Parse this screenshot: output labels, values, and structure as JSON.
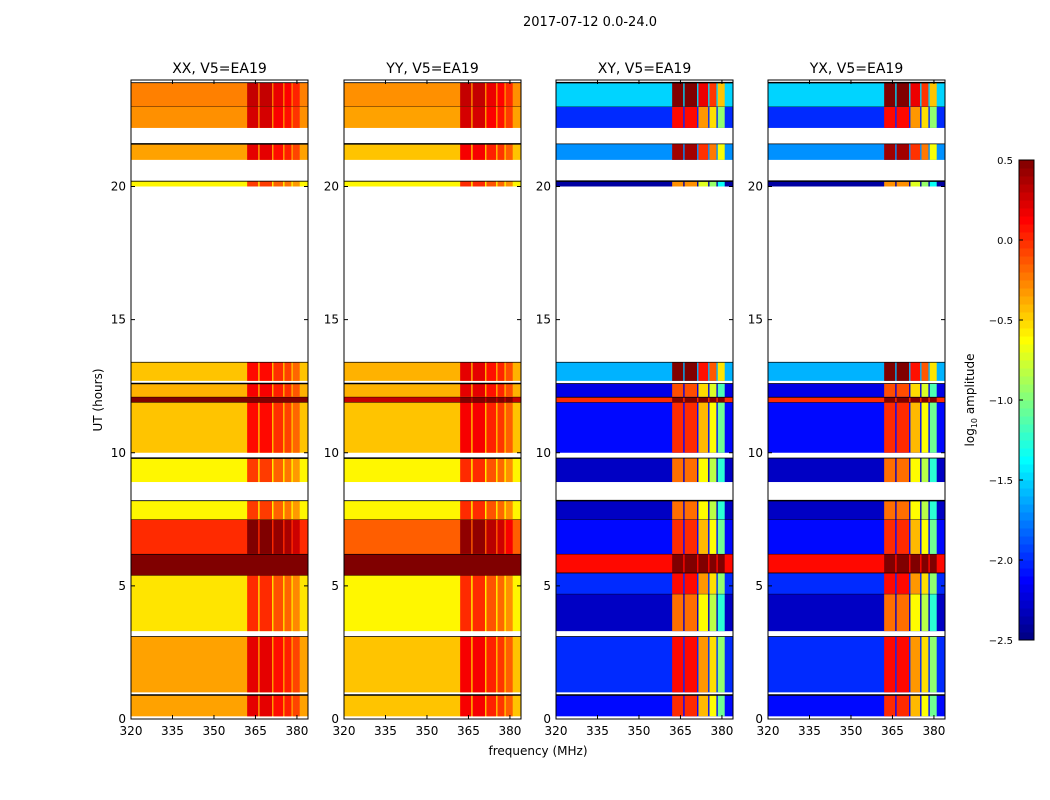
{
  "chart_data": {
    "type": "heatmap",
    "suptitle": "2017-07-12 0.0-24.0",
    "xlabel": "frequency (MHz)",
    "ylabel": "UT (hours)",
    "xlim": [
      320,
      384
    ],
    "ylim": [
      0,
      24
    ],
    "xticks": [
      "320",
      "335",
      "350",
      "365",
      "380"
    ],
    "xtick_values": [
      320,
      335,
      350,
      365,
      380
    ],
    "yticks": [
      "0",
      "5",
      "10",
      "15",
      "20"
    ],
    "ytick_values": [
      0,
      5,
      10,
      15,
      20
    ],
    "colorbar": {
      "label": "log10 amplitude",
      "label_main": "log",
      "label_sub": "10",
      "label_tail": " amplitude",
      "range": [
        -2.5,
        0.5
      ],
      "ticks": [
        "0.5",
        "0.0",
        "−0.5",
        "−1.0",
        "−1.5",
        "−2.0",
        "−2.5"
      ],
      "tick_values": [
        0.5,
        0,
        -0.5,
        -1,
        -1.5,
        -2,
        -2.5
      ],
      "colormap": "jet"
    },
    "panels": [
      {
        "title": "XX, V5=EA19",
        "hot_delta": 0.55,
        "bands": [
          [
            0.1,
            0.9,
            -0.35
          ],
          [
            1.0,
            3.1,
            -0.35
          ],
          [
            3.3,
            5.4,
            -0.55
          ],
          [
            5.4,
            6.2,
            0.5
          ],
          [
            6.2,
            7.5,
            0.0
          ],
          [
            7.5,
            8.2,
            -0.6
          ],
          [
            8.9,
            9.8,
            -0.6
          ],
          [
            10.0,
            11.9,
            -0.45
          ],
          [
            11.9,
            12.1,
            0.5
          ],
          [
            12.1,
            12.6,
            -0.4
          ],
          [
            12.7,
            13.4,
            -0.45
          ],
          [
            20.0,
            20.2,
            -0.6
          ],
          [
            21.0,
            21.6,
            -0.35
          ],
          [
            22.2,
            23.0,
            -0.3
          ],
          [
            23.0,
            23.9,
            -0.25
          ]
        ]
      },
      {
        "title": "YY, V5=EA19",
        "hot_delta": 0.6,
        "bands": [
          [
            0.1,
            0.9,
            -0.45
          ],
          [
            1.0,
            3.1,
            -0.45
          ],
          [
            3.3,
            5.4,
            -0.6
          ],
          [
            5.4,
            6.2,
            0.5
          ],
          [
            6.2,
            7.5,
            -0.15
          ],
          [
            7.5,
            8.2,
            -0.6
          ],
          [
            8.9,
            9.8,
            -0.6
          ],
          [
            10.0,
            11.9,
            -0.45
          ],
          [
            11.9,
            12.1,
            0.3
          ],
          [
            12.1,
            12.6,
            -0.4
          ],
          [
            12.7,
            13.4,
            -0.4
          ],
          [
            20.0,
            20.2,
            -0.6
          ],
          [
            21.0,
            21.6,
            -0.45
          ],
          [
            22.2,
            23.0,
            -0.35
          ],
          [
            23.0,
            23.9,
            -0.3
          ]
        ]
      },
      {
        "title": "XY, V5=EA19",
        "hot_delta": 2.1,
        "bands": [
          [
            0.1,
            0.9,
            -2.1
          ],
          [
            1.0,
            3.1,
            -2.0
          ],
          [
            3.3,
            4.7,
            -2.3
          ],
          [
            4.7,
            5.5,
            -2.0
          ],
          [
            5.5,
            6.2,
            0.1
          ],
          [
            6.2,
            7.5,
            -2.1
          ],
          [
            7.5,
            8.2,
            -2.3
          ],
          [
            8.9,
            9.8,
            -2.3
          ],
          [
            10.0,
            11.9,
            -2.1
          ],
          [
            11.9,
            12.1,
            0.0
          ],
          [
            12.1,
            12.6,
            -2.2
          ],
          [
            12.7,
            13.4,
            -1.6
          ],
          [
            20.0,
            20.2,
            -2.4
          ],
          [
            21.0,
            21.6,
            -1.7
          ],
          [
            22.2,
            23.0,
            -2.0
          ],
          [
            23.0,
            23.9,
            -1.5
          ]
        ]
      },
      {
        "title": "YX, V5=EA19",
        "hot_delta": 2.1,
        "bands": [
          [
            0.1,
            0.9,
            -2.1
          ],
          [
            1.0,
            3.1,
            -2.0
          ],
          [
            3.3,
            4.7,
            -2.3
          ],
          [
            4.7,
            5.5,
            -2.0
          ],
          [
            5.5,
            6.2,
            0.1
          ],
          [
            6.2,
            7.5,
            -2.1
          ],
          [
            7.5,
            8.2,
            -2.3
          ],
          [
            8.9,
            9.8,
            -2.3
          ],
          [
            10.0,
            11.9,
            -2.1
          ],
          [
            11.9,
            12.1,
            0.0
          ],
          [
            12.1,
            12.6,
            -2.2
          ],
          [
            12.7,
            13.4,
            -1.6
          ],
          [
            20.0,
            20.2,
            -2.4
          ],
          [
            21.0,
            21.6,
            -1.7
          ],
          [
            22.2,
            23.0,
            -2.0
          ],
          [
            23.0,
            23.9,
            -1.5
          ]
        ]
      }
    ],
    "hot_columns": [
      [
        362,
        366,
        1.0
      ],
      [
        366.5,
        371,
        1.0
      ],
      [
        371.5,
        375,
        0.8
      ],
      [
        375.5,
        378,
        0.7
      ],
      [
        378.5,
        381,
        0.5
      ]
    ]
  }
}
